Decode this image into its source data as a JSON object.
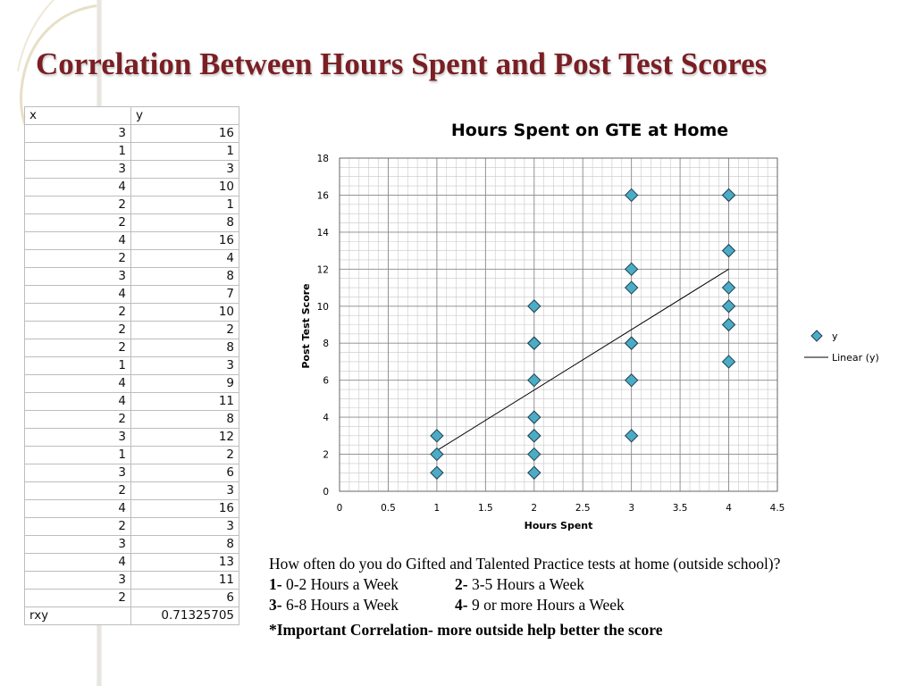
{
  "slide": {
    "title": "Correlation Between Hours Spent and Post Test Scores"
  },
  "table": {
    "headers": [
      "x",
      "y"
    ],
    "rows": [
      [
        "3",
        "16"
      ],
      [
        "1",
        "1"
      ],
      [
        "3",
        "3"
      ],
      [
        "4",
        "10"
      ],
      [
        "2",
        "1"
      ],
      [
        "2",
        "8"
      ],
      [
        "4",
        "16"
      ],
      [
        "2",
        "4"
      ],
      [
        "3",
        "8"
      ],
      [
        "4",
        "7"
      ],
      [
        "2",
        "10"
      ],
      [
        "2",
        "2"
      ],
      [
        "2",
        "8"
      ],
      [
        "1",
        "3"
      ],
      [
        "4",
        "9"
      ],
      [
        "4",
        "11"
      ],
      [
        "2",
        "8"
      ],
      [
        "3",
        "12"
      ],
      [
        "1",
        "2"
      ],
      [
        "3",
        "6"
      ],
      [
        "2",
        "3"
      ],
      [
        "4",
        "16"
      ],
      [
        "2",
        "3"
      ],
      [
        "3",
        "8"
      ],
      [
        "4",
        "13"
      ],
      [
        "3",
        "11"
      ],
      [
        "2",
        "6"
      ]
    ],
    "footer_label": "rxy",
    "footer_value": "0.71325705"
  },
  "chart_data": {
    "type": "scatter",
    "title": "Hours Spent on GTE at Home",
    "xlabel": "Hours Spent",
    "ylabel": "Post Test Score",
    "xlim": [
      0,
      4.5
    ],
    "ylim": [
      0,
      18
    ],
    "x_ticks": [
      "0",
      "0.5",
      "1",
      "1.5",
      "2",
      "2.5",
      "3",
      "3.5",
      "4",
      "4.5"
    ],
    "y_ticks": [
      "0",
      "2",
      "4",
      "6",
      "8",
      "10",
      "12",
      "14",
      "16",
      "18"
    ],
    "grid": true,
    "legend_position": "right",
    "series": [
      {
        "name": "y",
        "marker": "diamond",
        "color": "#4bacc6",
        "x": [
          3,
          1,
          3,
          4,
          2,
          2,
          4,
          2,
          3,
          4,
          2,
          2,
          2,
          1,
          4,
          4,
          2,
          3,
          1,
          3,
          2,
          4,
          2,
          3,
          4,
          3,
          2
        ],
        "y": [
          16,
          1,
          3,
          10,
          1,
          8,
          16,
          4,
          8,
          7,
          10,
          2,
          8,
          3,
          9,
          11,
          8,
          12,
          2,
          6,
          3,
          16,
          3,
          8,
          13,
          11,
          6
        ]
      },
      {
        "name": "Linear (y)",
        "type": "trendline",
        "color": "#000000",
        "x": [
          1,
          4
        ],
        "y": [
          2.2,
          12
        ]
      }
    ]
  },
  "question": {
    "text": "How often do you do Gifted and Talented Practice tests at home (outside school)?",
    "options": [
      {
        "num": "1-",
        "label": "0-2 Hours a Week"
      },
      {
        "num": "2-",
        "label": "3-5 Hours a Week"
      },
      {
        "num": "3-",
        "label": "6-8 Hours a Week"
      },
      {
        "num": "4-",
        "label": "9 or more Hours a Week"
      }
    ],
    "note": "*Important Correlation- more outside help better the score"
  }
}
